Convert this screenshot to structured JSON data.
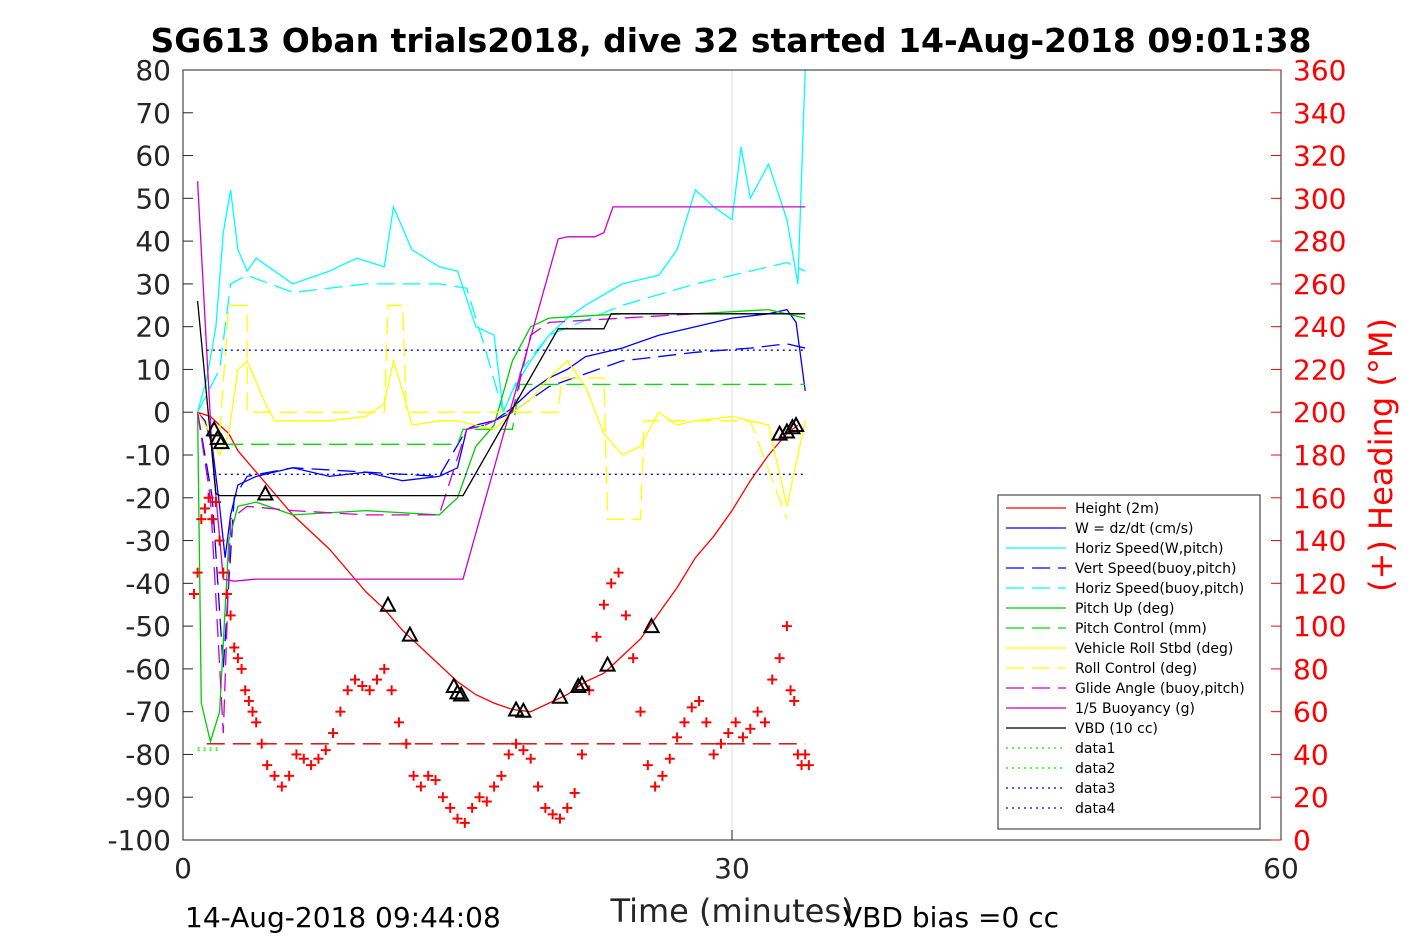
{
  "chart_data": {
    "type": "line",
    "title": "SG613 Oban trials2018, dive 32 started 14-Aug-2018 09:01:38",
    "xlabel": "Time (minutes)",
    "ylabel_right": "(+) Heading (°M)",
    "xlim": [
      0,
      60
    ],
    "ylim": [
      -100,
      80
    ],
    "ylim_right": [
      0,
      360
    ],
    "x_ticks": [
      "0",
      "30",
      "60"
    ],
    "y_ticks": [
      "80",
      "70",
      "60",
      "50",
      "40",
      "30",
      "20",
      "10",
      "0",
      "-10",
      "-20",
      "-30",
      "-40",
      "-50",
      "-60",
      "-70",
      "-80",
      "-90",
      "-100"
    ],
    "y_ticks_right": [
      "360",
      "340",
      "320",
      "300",
      "280",
      "260",
      "240",
      "220",
      "200",
      "180",
      "160",
      "140",
      "120",
      "100",
      "80",
      "60",
      "40",
      "20",
      "0"
    ],
    "grid": "x-only at 30",
    "legend_position": "right-middle",
    "footer_left": "14-Aug-2018 09:44:08",
    "footer_right": "VBD bias =0 cc",
    "series": [
      {
        "name": "Height (2m)",
        "color": "#ff0000",
        "style": "solid",
        "x": [
          0.8,
          1.5,
          2.0,
          2.5,
          3.0,
          4.0,
          5.0,
          6.0,
          7.0,
          8.0,
          9.0,
          10.0,
          11.0,
          12.0,
          13.0,
          14.0,
          15.0,
          16.0,
          17.0,
          18.0,
          19.0,
          20.0,
          21.0,
          22.0,
          23.0,
          24.0,
          25.0,
          26.0,
          27.0,
          28.0,
          29.0,
          30.0,
          31.0,
          32.0,
          33.0,
          33.6
        ],
        "y": [
          0,
          -1,
          -3,
          -5,
          -9,
          -14,
          -19,
          -24,
          -28,
          -32,
          -37,
          -42,
          -46,
          -51,
          -55,
          -59,
          -63,
          -66,
          -68,
          -69.5,
          -70,
          -68,
          -66,
          -63,
          -61,
          -57,
          -53,
          -47,
          -41,
          -34,
          -29,
          -23,
          -16,
          -10,
          -5,
          -3
        ]
      },
      {
        "name": "W = dz/dt (cm/s)",
        "color": "#0000ff",
        "style": "solid",
        "x": [
          0.8,
          1.2,
          1.6,
          2.0,
          2.3,
          2.6,
          3.0,
          4.0,
          6.0,
          8.0,
          10.0,
          12.0,
          14.0,
          15.0,
          15.5,
          16.0,
          17.0,
          18.0,
          19.0,
          20.0,
          21.0,
          22.0,
          24.0,
          26.0,
          28.0,
          30.0,
          32.0,
          33.0,
          33.5,
          34.0
        ],
        "y": [
          0,
          -2,
          -8,
          -22,
          -34,
          -24,
          -17,
          -15,
          -13,
          -15,
          -14,
          -16,
          -15,
          -13,
          -4,
          -3,
          -2,
          1,
          5,
          8,
          10,
          13,
          15,
          18,
          20,
          22,
          23,
          24,
          21,
          5
        ]
      },
      {
        "name": "Horiz Speed(W,pitch)",
        "color": "#00ffff",
        "style": "solid",
        "x": [
          0.8,
          1.3,
          1.8,
          2.2,
          2.6,
          3.0,
          3.5,
          4.0,
          6.0,
          8.0,
          9.5,
          11.0,
          11.5,
          12.5,
          14.0,
          15.0,
          16.0,
          17.0,
          17.5,
          18.0,
          19.0,
          20.0,
          21.0,
          22.0,
          24.0,
          26.0,
          27.0,
          28.0,
          29.0,
          30.0,
          30.5,
          31.0,
          32.0,
          33.0,
          33.6,
          34.0
        ],
        "y": [
          0,
          8,
          20,
          42,
          52,
          38,
          33,
          36,
          30,
          33,
          36,
          34,
          48,
          38,
          34,
          33,
          20,
          18,
          0,
          5,
          12,
          18,
          22,
          25,
          30,
          32,
          38,
          52,
          48,
          45,
          62,
          50,
          58,
          45,
          30,
          80
        ]
      },
      {
        "name": "Vert Speed(buoy,pitch)",
        "color": "#0000ff",
        "style": "dashed",
        "x": [
          0.8,
          1.6,
          2.2,
          2.8,
          3.5,
          6.0,
          10.0,
          14.0,
          15.5,
          16.5,
          18.0,
          20.0,
          24.0,
          28.0,
          31.0,
          33.0,
          34.0
        ],
        "y": [
          0,
          -20,
          -60,
          -20,
          -15,
          -13,
          -14,
          -15,
          -4,
          -3,
          0,
          6,
          12,
          14,
          15,
          16,
          15
        ]
      },
      {
        "name": "Horiz Speed(buoy,pitch)",
        "color": "#00ffff",
        "style": "dashed",
        "x": [
          0.8,
          2.0,
          2.6,
          3.5,
          6.0,
          10.0,
          14.0,
          15.5,
          16.5,
          17.5,
          18.5,
          20.0,
          24.0,
          28.0,
          31.0,
          33.0,
          34.0
        ],
        "y": [
          0,
          10,
          30,
          32,
          28,
          30,
          30,
          29,
          15,
          0,
          10,
          18,
          25,
          30,
          33,
          35,
          33
        ]
      },
      {
        "name": "Pitch Up (deg)",
        "color": "#00cc00",
        "style": "solid",
        "x": [
          0.8,
          1.0,
          1.5,
          2.0,
          2.5,
          3.0,
          4.0,
          6.0,
          10.0,
          14.0,
          15.0,
          16.0,
          17.0,
          18.0,
          19.0,
          20.0,
          24.0,
          28.0,
          32.0,
          34.0
        ],
        "y": [
          0,
          -68,
          -77,
          -70,
          -30,
          -22,
          -21,
          -24,
          -23,
          -24,
          -20,
          -8,
          -3,
          12,
          20,
          22,
          23,
          23,
          24,
          22
        ]
      },
      {
        "name": "Pitch Control (mm)",
        "color": "#00dd00",
        "style": "dashed",
        "x": [
          2.3,
          3.0,
          15.0,
          15.3,
          18.0,
          18.4,
          34.0
        ],
        "y": [
          -7.5,
          -7.5,
          -7.5,
          -4,
          -4,
          6.5,
          6.5
        ]
      },
      {
        "name": "Vehicle Roll Stbd (deg)",
        "color": "#ffff00",
        "style": "solid",
        "x": [
          0.8,
          1.5,
          2.0,
          2.5,
          3.0,
          3.5,
          4.5,
          5.0,
          6.0,
          8.0,
          10.0,
          11.0,
          11.5,
          12.0,
          12.5,
          14.0,
          15.0,
          16.0,
          17.0,
          18.0,
          19.0,
          20.0,
          21.0,
          22.0,
          23.0,
          24.0,
          25.0,
          26.0,
          27.0,
          28.0,
          30.0,
          32.0,
          33.0,
          34.0
        ],
        "y": [
          0,
          -5,
          -10,
          -5,
          10,
          12,
          2,
          -2,
          -2,
          -2,
          -1,
          2,
          12,
          5,
          -3,
          -2,
          -2,
          -3,
          -4,
          0,
          3,
          8,
          12,
          6,
          -5,
          -10,
          -8,
          0,
          -3,
          -2,
          -1,
          -3,
          -22,
          -2
        ]
      },
      {
        "name": "Roll Control (deg)",
        "color": "#ffff00",
        "style": "dashed",
        "x": [
          2.0,
          2.5,
          3.5,
          3.5,
          11.0,
          11.2,
          12.0,
          12.2,
          15.0,
          20.5,
          20.7,
          23.0,
          23.2,
          25.0,
          25.2,
          31.0,
          33.0
        ],
        "y": [
          -5,
          25,
          25,
          0,
          0,
          25,
          25,
          0,
          0,
          0,
          8,
          8,
          -25,
          -25,
          -2,
          -2,
          -25
        ]
      },
      {
        "name": "Glide Angle (buoy,pitch)",
        "color": "#cc00cc",
        "style": "dashed",
        "x": [
          0.8,
          1.5,
          2.2,
          2.6,
          3.5,
          6.0,
          10.0,
          14.0,
          15.5,
          16.5,
          18.0,
          19.0,
          20.0,
          24.0,
          28.0,
          32.0,
          34.0
        ],
        "y": [
          0,
          -20,
          -75,
          -25,
          -22,
          -23,
          -24,
          -24,
          -4,
          -3,
          0,
          18,
          21,
          22,
          23,
          23,
          23
        ]
      },
      {
        "name": "1/5 Buoyancy (g)",
        "color": "#cc00cc",
        "style": "solid",
        "x": [
          0.8,
          1.6,
          2.2,
          2.8,
          4.0,
          10.0,
          15.3,
          20.5,
          21.0,
          22.5,
          23.0,
          23.5,
          24.0,
          25.0,
          34.0
        ],
        "y": [
          54,
          -10,
          -39,
          -39.5,
          -39,
          -39,
          -39,
          40.5,
          41,
          41,
          42,
          48,
          48,
          48,
          48
        ]
      },
      {
        "name": "VBD (10 cc)",
        "color": "#000000",
        "style": "solid",
        "x": [
          0.8,
          1.8,
          2.0,
          15.3,
          20.5,
          23.0,
          23.4,
          34.0
        ],
        "y": [
          26,
          -19,
          -19.5,
          -19.5,
          19.5,
          19.5,
          23,
          23
        ]
      },
      {
        "name": "data1",
        "color": "#00ee00",
        "style": "dotted",
        "x": [
          0.8,
          2.0
        ],
        "y": [
          -78.5,
          -78.5
        ]
      },
      {
        "name": "data2",
        "color": "#00ee00",
        "style": "dotted",
        "x": [
          0.8,
          2.0
        ],
        "y": [
          -79,
          -79
        ]
      },
      {
        "name": "data3",
        "color": "#0000cc",
        "style": "dotted",
        "x": [
          1.3,
          34.0
        ],
        "y": [
          14.5,
          14.5
        ]
      },
      {
        "name": "data4",
        "color": "#0000cc",
        "style": "dotted",
        "x": [
          1.3,
          34.0
        ],
        "y": [
          -14.5,
          -14.5
        ]
      }
    ],
    "extra_lines": [
      {
        "color": "#cc0000",
        "style": "dashed",
        "x": [
          1.3,
          34.0
        ],
        "y": [
          -77.5,
          -77.5
        ]
      }
    ],
    "heading": {
      "color": "#ff0000",
      "marker": "+",
      "axis": "right",
      "x": [
        0.6,
        0.8,
        1.0,
        1.2,
        1.4,
        1.6,
        1.8,
        2.0,
        2.2,
        2.4,
        2.6,
        2.8,
        3.0,
        3.2,
        3.4,
        3.6,
        3.8,
        4.0,
        4.3,
        4.6,
        5.0,
        5.4,
        5.8,
        6.2,
        6.6,
        7.0,
        7.4,
        7.8,
        8.2,
        8.6,
        9.0,
        9.4,
        9.8,
        10.2,
        10.6,
        11.0,
        11.4,
        11.8,
        12.2,
        12.6,
        13.0,
        13.4,
        13.8,
        14.2,
        14.6,
        15.0,
        15.4,
        15.8,
        16.2,
        16.6,
        17.0,
        17.4,
        17.8,
        18.2,
        18.6,
        19.0,
        19.4,
        19.8,
        20.2,
        20.6,
        21.0,
        21.4,
        21.8,
        22.2,
        22.6,
        23.0,
        23.4,
        23.8,
        24.2,
        24.6,
        25.0,
        25.4,
        25.8,
        26.2,
        26.6,
        27.0,
        27.4,
        27.8,
        28.2,
        28.6,
        29.0,
        29.4,
        29.8,
        30.2,
        30.6,
        31.0,
        31.4,
        31.8,
        32.2,
        32.6,
        33.0,
        33.2,
        33.4,
        33.6,
        33.8,
        34.0,
        34.2
      ],
      "y": [
        115,
        125,
        150,
        155,
        160,
        150,
        158,
        140,
        125,
        115,
        105,
        90,
        85,
        80,
        70,
        65,
        60,
        55,
        45,
        35,
        30,
        25,
        30,
        40,
        38,
        35,
        38,
        42,
        50,
        60,
        70,
        75,
        72,
        70,
        75,
        80,
        70,
        55,
        45,
        30,
        25,
        30,
        28,
        20,
        15,
        10,
        8,
        15,
        20,
        18,
        25,
        30,
        40,
        45,
        42,
        38,
        25,
        15,
        12,
        10,
        15,
        22,
        40,
        70,
        95,
        110,
        120,
        125,
        105,
        85,
        60,
        35,
        25,
        30,
        38,
        48,
        55,
        62,
        65,
        55,
        40,
        45,
        50,
        55,
        48,
        52,
        60,
        55,
        75,
        85,
        100,
        70,
        65,
        40,
        35,
        40,
        35
      ]
    },
    "markers": {
      "color": "#000000",
      "shape": "triangle",
      "x": [
        1.7,
        1.9,
        2.1,
        4.5,
        11.2,
        12.4,
        14.8,
        15.0,
        15.2,
        18.2,
        18.6,
        20.6,
        21.6,
        21.8,
        23.2,
        25.6,
        32.6,
        33.0,
        33.3,
        33.5
      ],
      "y": [
        -4,
        -6,
        -7,
        -19,
        -45,
        -52,
        -64,
        -65.5,
        -66,
        -69.5,
        -69.8,
        -66.5,
        -64,
        -63.5,
        -59,
        -50,
        -5,
        -4.5,
        -3.5,
        -3
      ]
    }
  }
}
